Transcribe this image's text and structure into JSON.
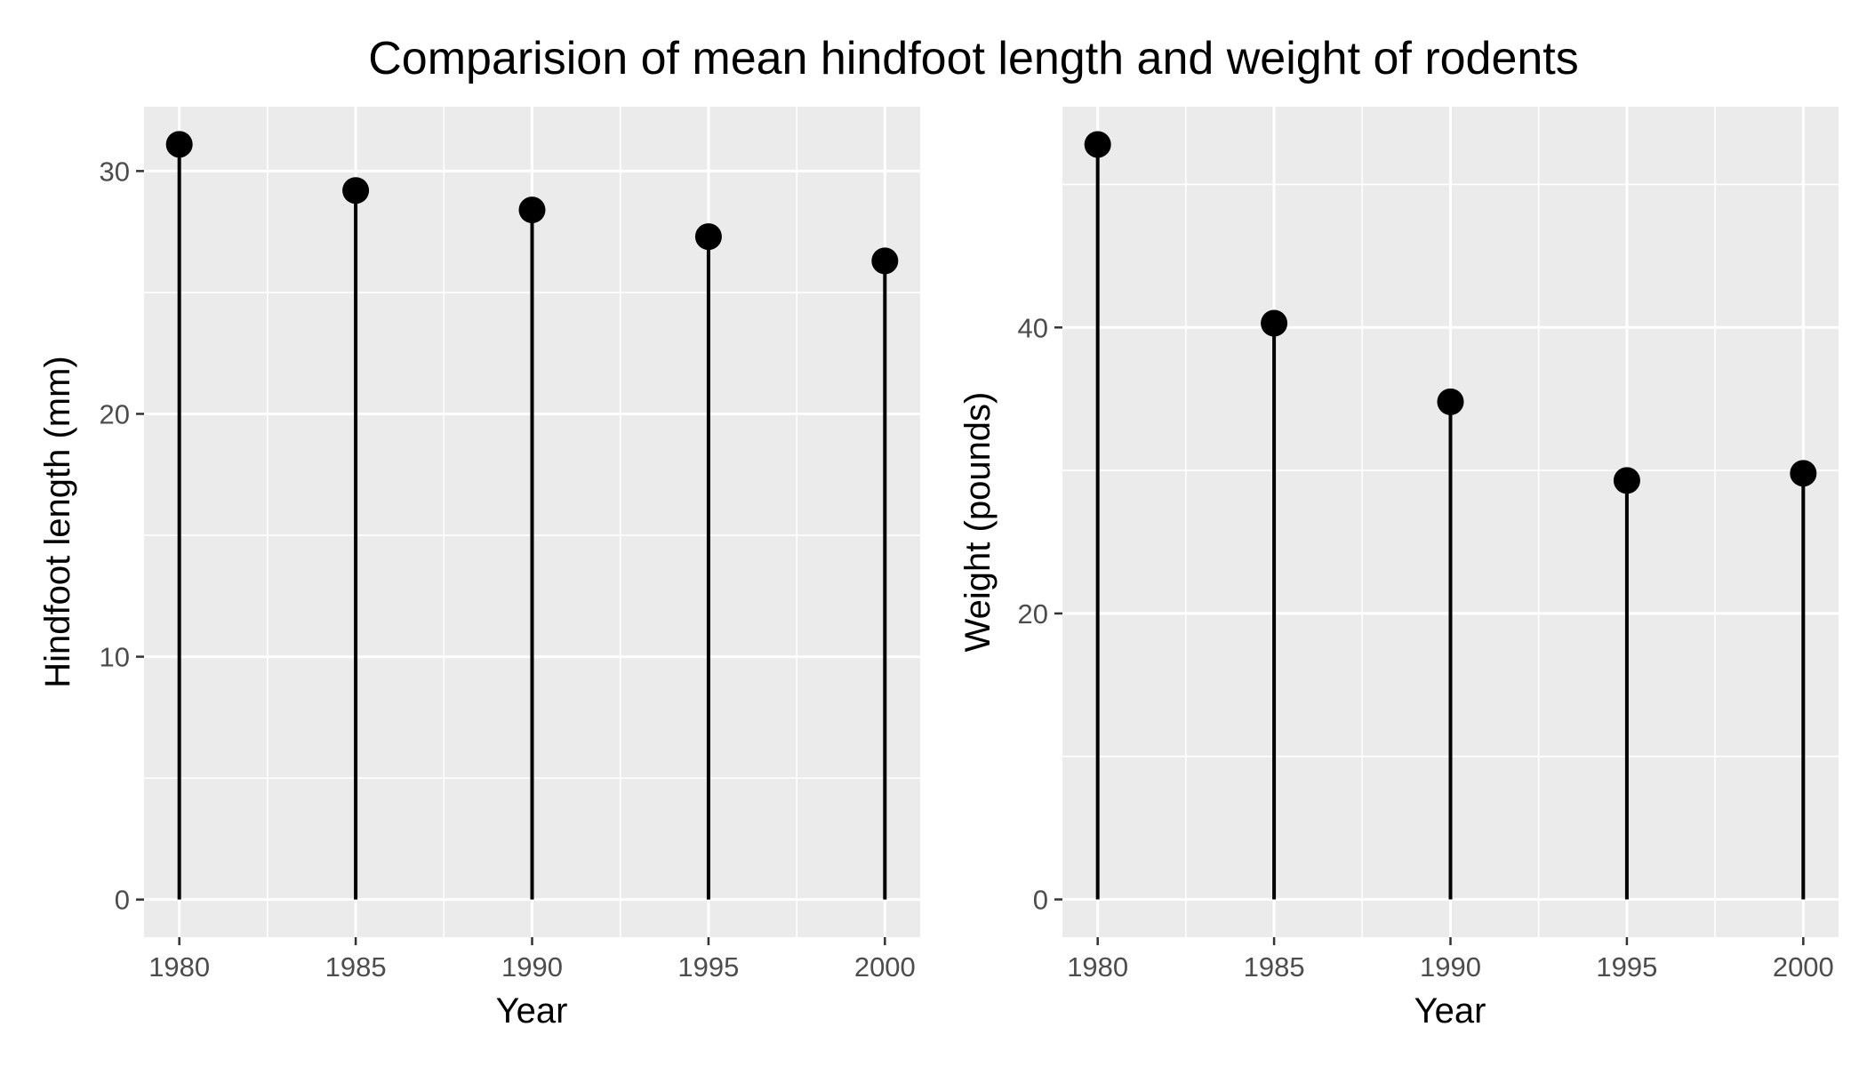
{
  "title": "Comparision of mean hindfoot length and weight of rodents",
  "chart_data": [
    {
      "type": "lollipop",
      "xlabel": "Year",
      "ylabel": "Hindfoot length (mm)",
      "x": [
        1980,
        1985,
        1990,
        1995,
        2000
      ],
      "y": [
        31.1,
        29.2,
        28.4,
        27.3,
        26.3
      ],
      "xticks": [
        1980,
        1985,
        1990,
        1995,
        2000
      ],
      "yticks": [
        0,
        10,
        20,
        30
      ],
      "xlim": [
        1979,
        2001
      ],
      "ylim": [
        -1.55,
        32.65
      ],
      "grid": true
    },
    {
      "type": "lollipop",
      "xlabel": "Year",
      "ylabel": "Weight (pounds)",
      "x": [
        1980,
        1985,
        1990,
        1995,
        2000
      ],
      "y": [
        52.8,
        40.3,
        34.8,
        29.3,
        29.8
      ],
      "xticks": [
        1980,
        1985,
        1990,
        1995,
        2000
      ],
      "yticks": [
        0,
        20,
        40
      ],
      "xlim": [
        1979,
        2001
      ],
      "ylim": [
        -2.64,
        55.44
      ],
      "grid": true
    }
  ]
}
